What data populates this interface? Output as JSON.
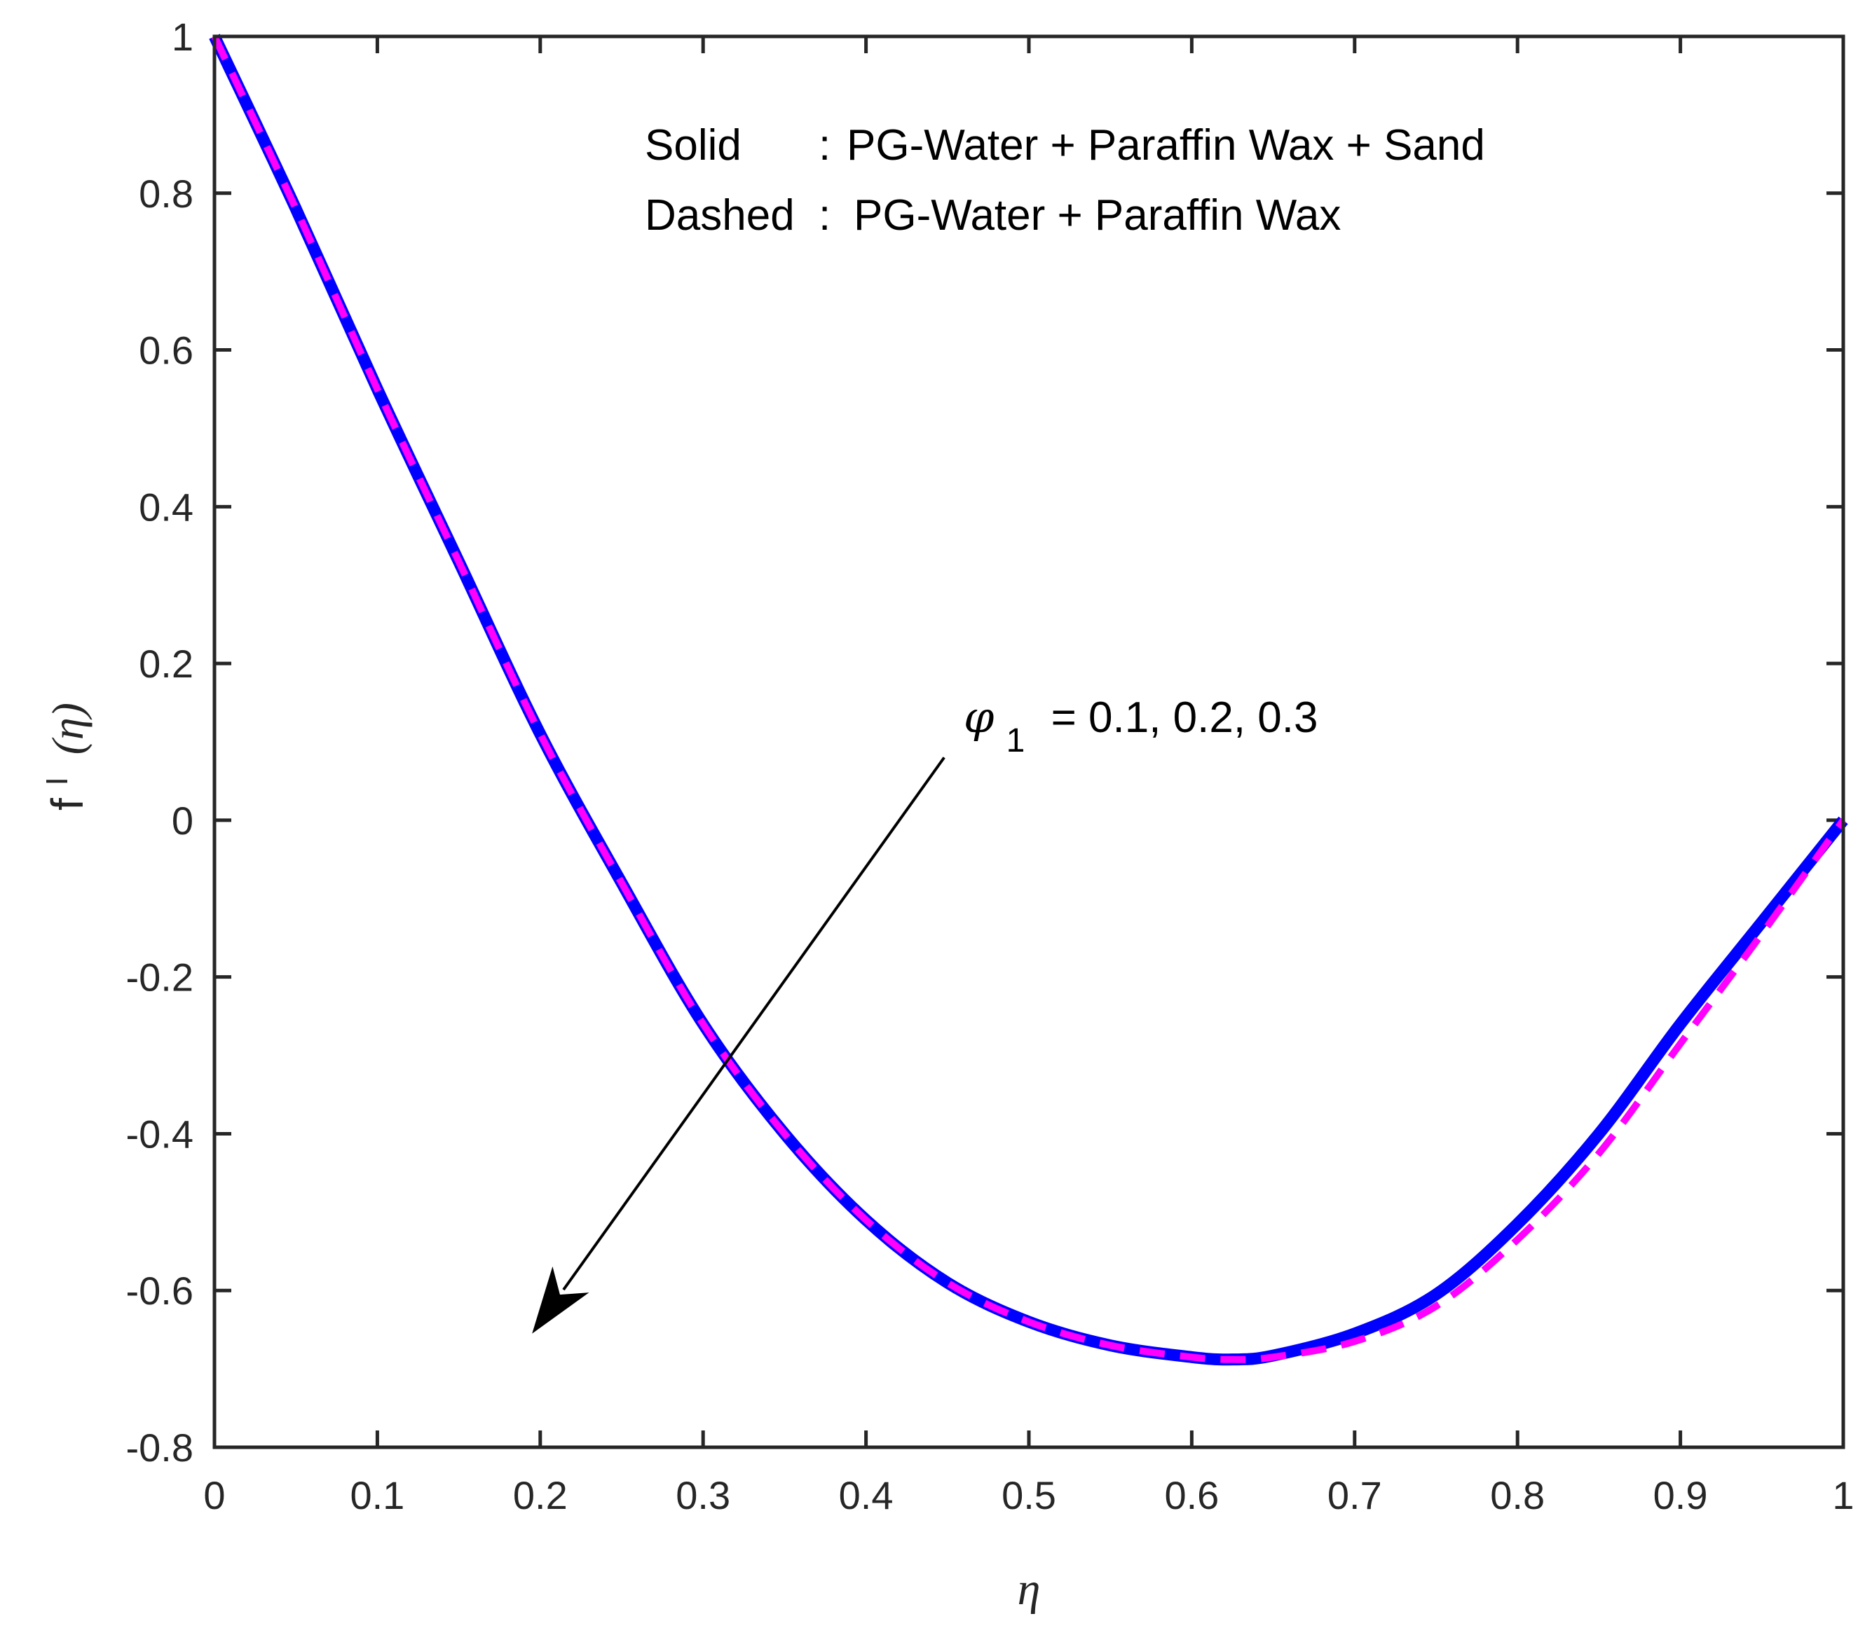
{
  "chart_data": {
    "type": "line",
    "title": "",
    "xlabel": "η",
    "ylabel": {
      "base": "f",
      "prime": "I",
      "arg": "(η)"
    },
    "xlim": [
      0,
      1
    ],
    "ylim": [
      -0.8,
      1
    ],
    "xticks": [
      0,
      0.1,
      0.2,
      0.3,
      0.4,
      0.5,
      0.6,
      0.7,
      0.8,
      0.9,
      1
    ],
    "yticks": [
      -0.8,
      -0.6,
      -0.4,
      -0.2,
      0,
      0.2,
      0.4,
      0.6,
      0.8,
      1
    ],
    "xtick_labels": [
      "0",
      "0.1",
      "0.2",
      "0.3",
      "0.4",
      "0.5",
      "0.6",
      "0.7",
      "0.8",
      "0.9",
      "1"
    ],
    "ytick_labels": [
      "-0.8",
      "-0.6",
      "-0.4",
      "-0.2",
      "0",
      "0.2",
      "0.4",
      "0.6",
      "0.8",
      "1"
    ],
    "grid": false,
    "series": [
      {
        "name": "Solid : PG-Water + Paraffin Wax + Sand",
        "style": "solid",
        "color": "#0000ff",
        "x": [
          0,
          0.05,
          0.1,
          0.15,
          0.2,
          0.25,
          0.3,
          0.35,
          0.4,
          0.45,
          0.5,
          0.55,
          0.6,
          0.625,
          0.65,
          0.7,
          0.75,
          0.8,
          0.85,
          0.9,
          0.95,
          1
        ],
        "y": [
          1,
          0.78,
          0.55,
          0.33,
          0.11,
          -0.08,
          -0.26,
          -0.4,
          -0.51,
          -0.59,
          -0.64,
          -0.67,
          -0.685,
          -0.688,
          -0.683,
          -0.655,
          -0.605,
          -0.515,
          -0.4,
          -0.26,
          -0.13,
          0
        ]
      },
      {
        "name": "Dashed : PG-Water + Paraffin Wax",
        "style": "dashed",
        "color": "#ff00ff",
        "x": [
          0,
          0.05,
          0.1,
          0.15,
          0.2,
          0.25,
          0.3,
          0.35,
          0.4,
          0.45,
          0.5,
          0.55,
          0.6,
          0.625,
          0.65,
          0.7,
          0.75,
          0.8,
          0.85,
          0.9,
          0.95,
          1
        ],
        "y": [
          1,
          0.78,
          0.55,
          0.33,
          0.11,
          -0.08,
          -0.26,
          -0.4,
          -0.51,
          -0.59,
          -0.64,
          -0.67,
          -0.685,
          -0.688,
          -0.685,
          -0.665,
          -0.62,
          -0.535,
          -0.425,
          -0.285,
          -0.145,
          0
        ]
      }
    ],
    "annotations": {
      "legend_line1": {
        "label": "Solid",
        "sep": ":",
        "text": "PG-Water + Paraffin Wax + Sand"
      },
      "legend_line2": {
        "label": "Dashed",
        "sep": ":",
        "text": "PG-Water + Paraffin Wax"
      },
      "arrow": {
        "symbol": "φ",
        "subscript": "1",
        "text": "= 0.1, 0.2, 0.3",
        "from": [
          0.448,
          0.08
        ],
        "to": [
          0.195,
          -0.655
        ]
      }
    }
  }
}
